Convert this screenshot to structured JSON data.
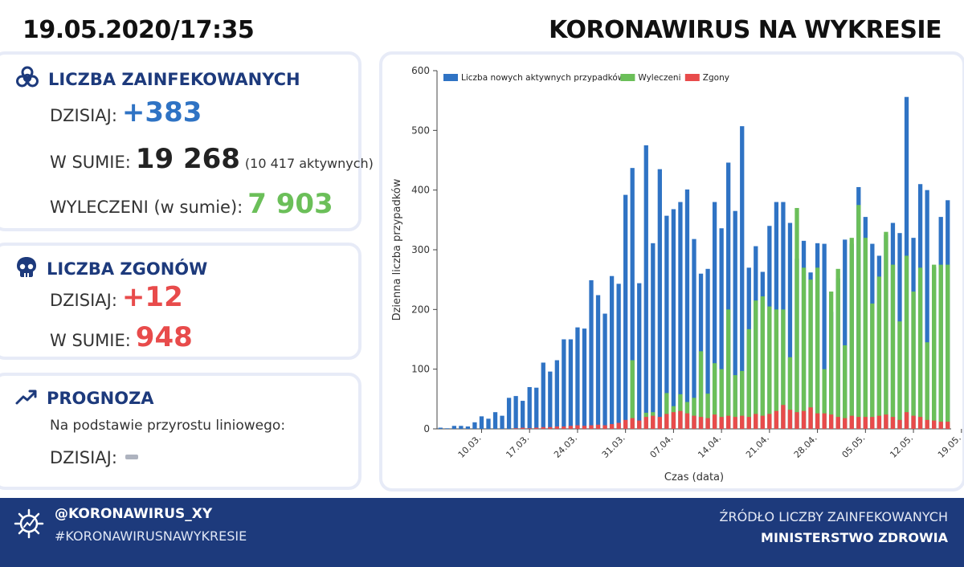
{
  "header": {
    "date": "19.05.2020/17:35",
    "title": "KORONAWIRUS NA WYKRESIE"
  },
  "infected": {
    "title": "LICZBA ZAINFEKOWANYCH",
    "today_label": "DZISIAJ:",
    "today_value": "+383",
    "total_label": "W SUMIE:",
    "total_value": "19 268",
    "total_note": "(10 417 aktywnych)",
    "recovered_label": "WYLECZENI (w sumie):",
    "recovered_value": "7 903",
    "icon": "biohazard-icon"
  },
  "deaths": {
    "title": "LICZBA ZGONÓW",
    "today_label": "DZISIAJ:",
    "today_value": "+12",
    "total_label": "W SUMIE:",
    "total_value": "948",
    "icon": "skull-icon"
  },
  "forecast": {
    "title": "PROGNOZA",
    "subtitle": "Na podstawie przyrostu liniowego:",
    "today_label": "DZISIAJ:",
    "icon": "trend-up-icon"
  },
  "footer": {
    "handle": "@KORONAWIRUS_XY",
    "hashtag": "#KORONAWIRUSNAWYKRESIE",
    "source_line1": "ŹRÓDŁO LICZBY ZAINFEKOWANYCH",
    "source_line2": "MINISTERSTWO ZDROWIA",
    "icon": "virus-icon"
  },
  "colors": {
    "navy": "#1d3a7c",
    "blue": "#2f73c4",
    "green": "#6bbf59",
    "red": "#e84b4b"
  },
  "chart_data": {
    "type": "bar",
    "xlabel": "Czas (data)",
    "ylabel": "Dzienna liczba przypadków",
    "ylim": [
      0,
      600
    ],
    "yticks": [
      0,
      100,
      200,
      300,
      400,
      500,
      600
    ],
    "xtick_labels": [
      "10.03.",
      "17.03.",
      "24.03.",
      "31.03.",
      "07.04.",
      "14.04.",
      "21.04.",
      "28.04.",
      "05.05.",
      "12.05.",
      "19.05."
    ],
    "xtick_indices": [
      6,
      13,
      20,
      27,
      34,
      41,
      48,
      55,
      62,
      69,
      76
    ],
    "legend_position": "top-left",
    "series": [
      {
        "name": "Liczba nowych aktywnych przypadków",
        "color": "#2f73c4",
        "values": [
          2,
          1,
          5,
          5,
          4,
          11,
          21,
          17,
          28,
          22,
          52,
          55,
          47,
          70,
          69,
          111,
          96,
          115,
          150,
          150,
          170,
          168,
          249,
          224,
          193,
          256,
          243,
          392,
          437,
          244,
          475,
          311,
          435,
          357,
          368,
          380,
          401,
          318,
          260,
          268,
          380,
          336,
          446,
          365,
          507,
          270,
          306,
          263,
          340,
          380,
          380,
          345,
          285,
          315,
          262,
          311,
          310,
          196,
          252,
          317,
          310,
          405,
          355,
          310,
          290,
          325,
          345,
          328,
          556,
          320,
          410,
          400,
          271,
          355,
          383
        ]
      },
      {
        "name": "Wyleczeni",
        "color": "#6bbf59",
        "values": [
          0,
          0,
          0,
          0,
          0,
          0,
          0,
          0,
          0,
          0,
          0,
          0,
          0,
          0,
          0,
          0,
          0,
          0,
          0,
          0,
          0,
          0,
          0,
          0,
          0,
          0,
          0,
          0,
          115,
          0,
          27,
          28,
          0,
          60,
          38,
          58,
          45,
          52,
          130,
          59,
          110,
          100,
          200,
          90,
          97,
          167,
          215,
          222,
          205,
          200,
          200,
          120,
          370,
          270,
          250,
          270,
          100,
          230,
          268,
          140,
          320,
          375,
          320,
          210,
          255,
          330,
          275,
          180,
          290,
          230,
          270,
          145,
          275,
          275,
          275
        ]
      },
      {
        "name": "Zgony",
        "color": "#e84b4b",
        "values": [
          0,
          0,
          0,
          0,
          0,
          0,
          0,
          0,
          0,
          0,
          0,
          1,
          2,
          1,
          2,
          3,
          3,
          4,
          4,
          5,
          6,
          5,
          6,
          7,
          6,
          8,
          10,
          15,
          18,
          14,
          20,
          22,
          20,
          25,
          28,
          30,
          26,
          22,
          20,
          18,
          24,
          20,
          22,
          20,
          22,
          20,
          25,
          22,
          25,
          30,
          40,
          32,
          28,
          30,
          36,
          26,
          26,
          24,
          20,
          18,
          22,
          20,
          20,
          20,
          22,
          24,
          20,
          15,
          28,
          22,
          20,
          15,
          14,
          12,
          12
        ]
      }
    ]
  }
}
